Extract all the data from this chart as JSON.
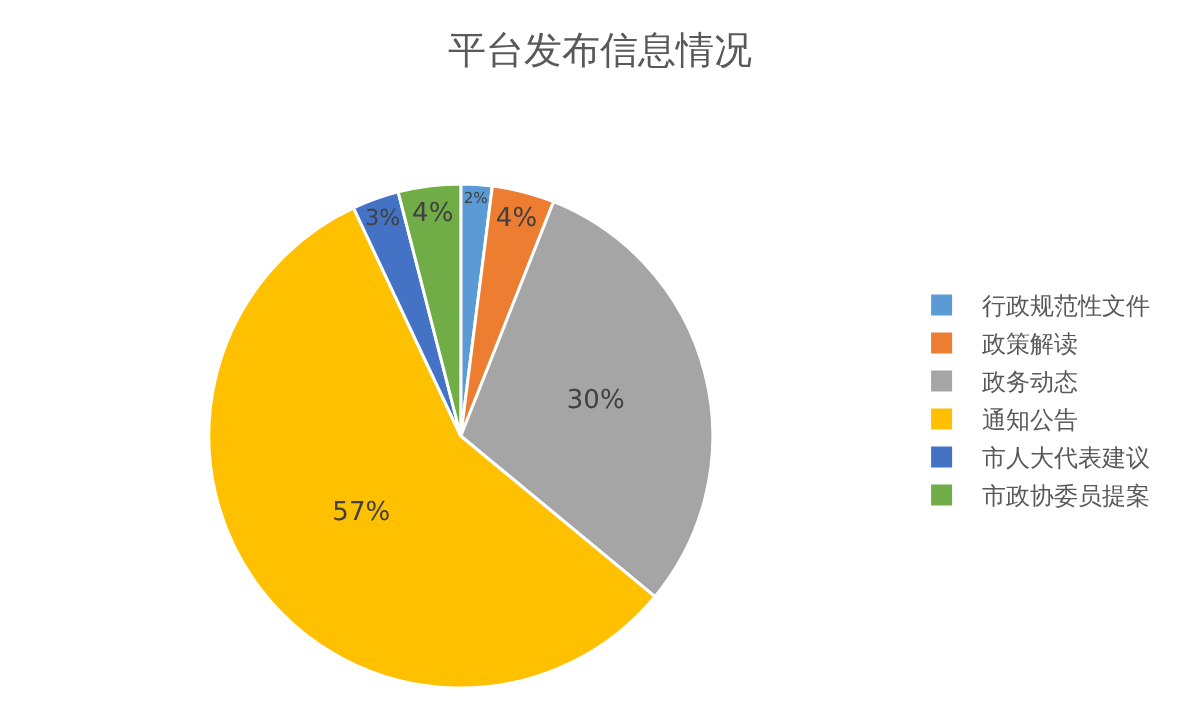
{
  "chart_data": {
    "type": "pie",
    "title": "平台发布信息情况",
    "categories": [
      "行政规范性文件",
      "政策解读",
      "政务动态",
      "通知公告",
      "市人大代表建议",
      "市政协委员提案"
    ],
    "values": [
      2,
      4,
      30,
      57,
      3,
      4
    ],
    "value_labels": [
      "2%",
      "4%",
      "30%",
      "57%",
      "3%",
      "4%"
    ],
    "colors": [
      "#5b9bd5",
      "#ed7d31",
      "#a5a5a5",
      "#ffc000",
      "#4472c4",
      "#70ad47"
    ],
    "legend": "right"
  }
}
